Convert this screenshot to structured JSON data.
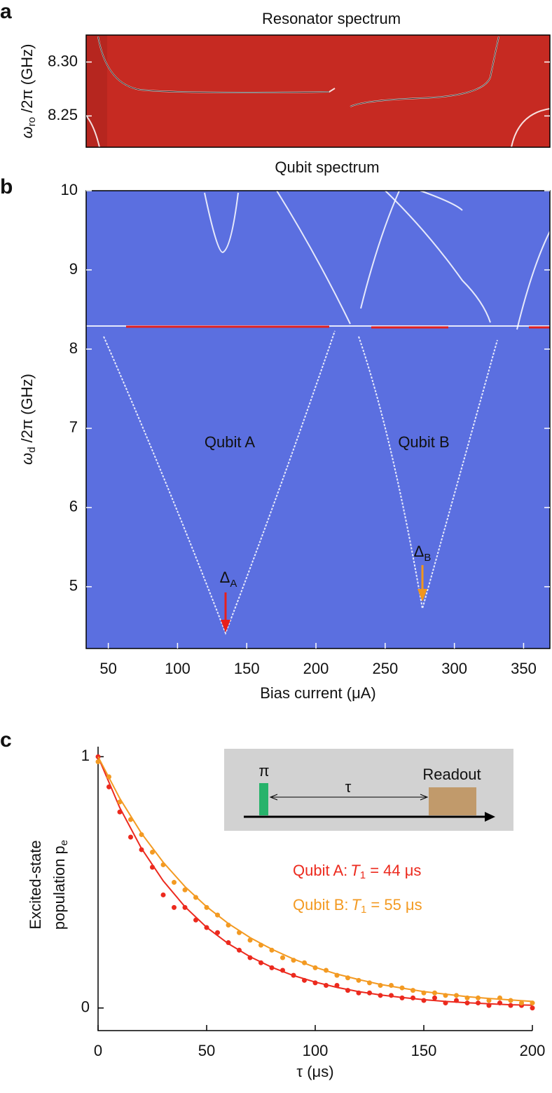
{
  "chart_data": [
    {
      "type": "heatmap",
      "label": "a",
      "title": "Resonator spectrum",
      "ylabel": {
        "symbol": "ω",
        "subscript": "ro",
        "text": " /2π (GHz)"
      },
      "ylim": [
        8.221,
        8.325
      ],
      "yticks": [
        {
          "value": 8.3,
          "label": "8.30"
        },
        8.25
      ],
      "color": "#c62a22"
    },
    {
      "type": "heatmap",
      "label": "b",
      "title": "Qubit spectrum",
      "xlabel": "Bias current (μA)",
      "ylabel": {
        "symbol": "ω",
        "subscript": "d",
        "text": " /2π (GHz)"
      },
      "xlim": [
        34,
        369
      ],
      "xticks": [
        50,
        100,
        150,
        200,
        250,
        300,
        350
      ],
      "ylim": [
        4.22,
        10
      ],
      "yticks": [
        5,
        6,
        7,
        8,
        9,
        10
      ],
      "color": "#5b6fe0",
      "annotations": [
        {
          "text": "Qubit A",
          "color": "#e8201c"
        },
        {
          "text": "Qubit B",
          "color": "#f0961e"
        },
        {
          "symbol": "Δ",
          "subscript": "A",
          "color": "#e8201c"
        },
        {
          "symbol": "Δ",
          "subscript": "B",
          "color": "#f0961e"
        }
      ]
    },
    {
      "type": "scatter",
      "label": "c",
      "xlabel": "τ (μs)",
      "ylabel": [
        "Excited-state",
        "population p",
        "e"
      ],
      "xlim": [
        0,
        200
      ],
      "xticks": [
        0,
        50,
        100,
        150,
        200
      ],
      "ylim": [
        -0.09,
        1.04
      ],
      "yticks": [
        0,
        1
      ],
      "inset": {
        "pulse": "π",
        "delay": "τ",
        "readout": "Readout"
      },
      "series": [
        {
          "name": "Qubit A:",
          "t1_symbol": "T",
          "t1_sub": "1",
          "t1_text": " = 44 μs",
          "color": "#ec2a1e",
          "x": [
            0,
            5,
            10,
            15,
            20,
            25,
            30,
            35,
            40,
            45,
            50,
            55,
            60,
            65,
            70,
            75,
            80,
            85,
            90,
            95,
            100,
            105,
            110,
            115,
            120,
            125,
            130,
            135,
            140,
            145,
            150,
            155,
            160,
            165,
            170,
            175,
            180,
            185,
            190,
            195,
            200
          ],
          "values": [
            1.0,
            0.88,
            0.78,
            0.68,
            0.63,
            0.56,
            0.45,
            0.4,
            0.4,
            0.35,
            0.32,
            0.3,
            0.26,
            0.23,
            0.2,
            0.18,
            0.16,
            0.15,
            0.13,
            0.11,
            0.1,
            0.09,
            0.09,
            0.07,
            0.06,
            0.06,
            0.05,
            0.05,
            0.04,
            0.04,
            0.03,
            0.04,
            0.02,
            0.03,
            0.02,
            0.02,
            0.01,
            0.02,
            0.01,
            0.01,
            0.0
          ],
          "fit_x": [
            0,
            10,
            20,
            30,
            40,
            50,
            60,
            70,
            80,
            90,
            100,
            110,
            120,
            130,
            140,
            150,
            160,
            170,
            180,
            190,
            200
          ],
          "fit": [
            1,
            0.797,
            0.635,
            0.506,
            0.403,
            0.321,
            0.256,
            0.204,
            0.162,
            0.129,
            0.103,
            0.082,
            0.065,
            0.052,
            0.042,
            0.033,
            0.026,
            0.021,
            0.017,
            0.013,
            0.011
          ]
        },
        {
          "name": "Qubit B:",
          "t1_symbol": "T",
          "t1_sub": "1",
          "t1_text": " = 55 μs",
          "color": "#f39a22",
          "x": [
            0,
            5,
            10,
            15,
            20,
            25,
            30,
            35,
            40,
            45,
            50,
            55,
            60,
            65,
            70,
            75,
            80,
            85,
            90,
            95,
            100,
            105,
            110,
            115,
            120,
            125,
            130,
            135,
            140,
            145,
            150,
            155,
            160,
            165,
            170,
            175,
            180,
            185,
            190,
            195,
            200
          ],
          "values": [
            0.98,
            0.92,
            0.82,
            0.75,
            0.69,
            0.62,
            0.57,
            0.5,
            0.47,
            0.44,
            0.4,
            0.37,
            0.33,
            0.3,
            0.27,
            0.25,
            0.23,
            0.2,
            0.19,
            0.18,
            0.16,
            0.15,
            0.13,
            0.12,
            0.11,
            0.1,
            0.09,
            0.09,
            0.08,
            0.07,
            0.06,
            0.06,
            0.05,
            0.05,
            0.04,
            0.04,
            0.03,
            0.04,
            0.03,
            0.02,
            0.02
          ],
          "fit_x": [
            0,
            10,
            20,
            30,
            40,
            50,
            60,
            70,
            80,
            90,
            100,
            110,
            120,
            130,
            140,
            150,
            160,
            170,
            180,
            190,
            200
          ],
          "fit": [
            1,
            0.834,
            0.695,
            0.58,
            0.483,
            0.403,
            0.336,
            0.28,
            0.234,
            0.195,
            0.162,
            0.135,
            0.113,
            0.094,
            0.079,
            0.065,
            0.055,
            0.045,
            0.038,
            0.032,
            0.026
          ]
        }
      ]
    }
  ]
}
